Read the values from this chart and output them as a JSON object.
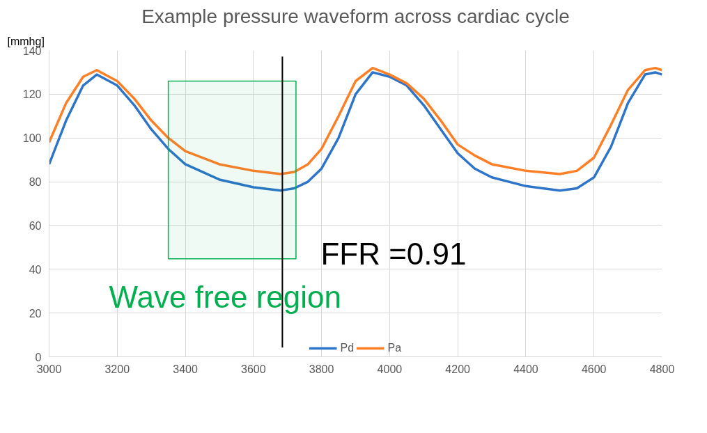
{
  "chart_data": {
    "type": "line",
    "title": "Example pressure waveform across cardiac cycle",
    "ylabel": "[mmhg]",
    "x": [
      3000,
      3050,
      3100,
      3140,
      3200,
      3250,
      3300,
      3350,
      3400,
      3500,
      3600,
      3680,
      3720,
      3760,
      3800,
      3850,
      3900,
      3950,
      4000,
      4050,
      4100,
      4150,
      4200,
      4250,
      4300,
      4400,
      4500,
      4550,
      4600,
      4650,
      4700,
      4750,
      4780,
      4800
    ],
    "series": [
      {
        "name": "Pd",
        "color": "#2e75c9",
        "values": [
          88,
          108,
          124,
          129,
          124,
          115,
          104,
          95,
          88,
          81,
          77.5,
          76,
          77,
          80,
          86,
          100,
          120,
          130,
          128,
          124,
          115,
          104,
          93,
          86,
          82,
          78,
          76,
          77,
          82,
          96,
          116,
          129,
          130,
          129
        ]
      },
      {
        "name": "Pa",
        "color": "#ff7f27",
        "values": [
          98,
          116,
          128,
          131,
          126,
          118,
          108,
          100,
          94,
          88,
          85,
          83.5,
          84.5,
          88,
          95,
          110,
          126,
          132,
          129,
          125,
          118,
          108,
          97,
          92,
          88,
          85,
          83.5,
          85,
          91,
          106,
          122,
          131,
          132,
          131
        ]
      }
    ],
    "xlim": [
      3000,
      4800
    ],
    "xticks": [
      3000,
      3200,
      3400,
      3600,
      3800,
      4000,
      4200,
      4400,
      4600,
      4800
    ],
    "ylim": [
      0,
      140
    ],
    "yticks": [
      0,
      20,
      40,
      60,
      80,
      100,
      120,
      140
    ],
    "ref_lines": [
      {
        "axis": "x",
        "value": 3685,
        "color": "#000000"
      }
    ],
    "annotations": [
      "FFR =0.91"
    ],
    "bands": [
      {
        "axis": "x",
        "from": 3350,
        "to": 3725,
        "label": "Wave free region",
        "color": "#00b050"
      }
    ],
    "grid": true,
    "legend": "bottom",
    "line_style": "solid",
    "marker": "none"
  }
}
